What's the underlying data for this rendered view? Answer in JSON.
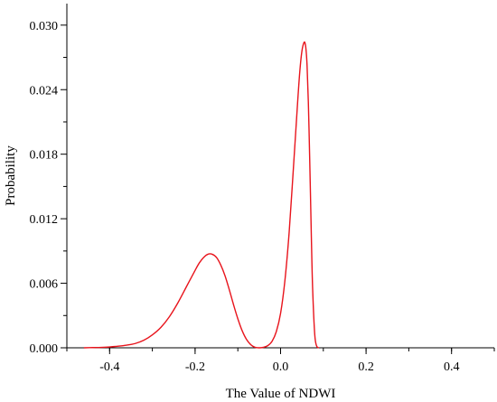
{
  "chart_data": {
    "type": "line",
    "title": "",
    "xlabel": "The Value of NDWI",
    "ylabel": "Probability",
    "xlim": [
      -0.5,
      0.5
    ],
    "ylim": [
      0,
      0.032
    ],
    "x_ticks": [
      -0.4,
      -0.2,
      0.0,
      0.2,
      0.4
    ],
    "x_tick_labels": [
      "-0.4",
      "-0.2",
      "0.0",
      "0.2",
      "0.4"
    ],
    "y_ticks": [
      0,
      0.006,
      0.012,
      0.018,
      0.024,
      0.03
    ],
    "y_tick_labels": [
      "0.000",
      "0.006",
      "0.012",
      "0.018",
      "0.024",
      "0.030"
    ],
    "grid": false,
    "legend": "none",
    "series": [
      {
        "color": "#e8141c",
        "x": [
          -0.46,
          -0.44,
          -0.42,
          -0.4,
          -0.38,
          -0.36,
          -0.34,
          -0.32,
          -0.3,
          -0.28,
          -0.26,
          -0.24,
          -0.22,
          -0.2,
          -0.19,
          -0.18,
          -0.17,
          -0.16,
          -0.15,
          -0.14,
          -0.13,
          -0.12,
          -0.11,
          -0.1,
          -0.09,
          -0.08,
          -0.07,
          -0.06,
          -0.05,
          -0.04,
          -0.03,
          -0.02,
          -0.01,
          0.0,
          0.01,
          0.02,
          0.03,
          0.04,
          0.045,
          0.05,
          0.055,
          0.058,
          0.06,
          0.062,
          0.065,
          0.068,
          0.07,
          0.072,
          0.075,
          0.08,
          0.085,
          0.09
        ],
        "y": [
          0,
          2e-05,
          4e-05,
          8e-05,
          0.00015,
          0.00025,
          0.0004,
          0.0007,
          0.0012,
          0.0019,
          0.0029,
          0.0042,
          0.0057,
          0.0072,
          0.0079,
          0.0084,
          0.0087,
          0.0087,
          0.0084,
          0.0077,
          0.0067,
          0.0054,
          0.004,
          0.0027,
          0.0016,
          0.0008,
          0.0003,
          5e-05,
          0,
          5e-05,
          0.0002,
          0.0006,
          0.0015,
          0.0032,
          0.0062,
          0.0107,
          0.0167,
          0.0229,
          0.0257,
          0.0276,
          0.0284,
          0.0282,
          0.0275,
          0.0262,
          0.0228,
          0.0178,
          0.0141,
          0.0103,
          0.0055,
          0.0012,
          0.0001,
          0
        ]
      }
    ]
  }
}
